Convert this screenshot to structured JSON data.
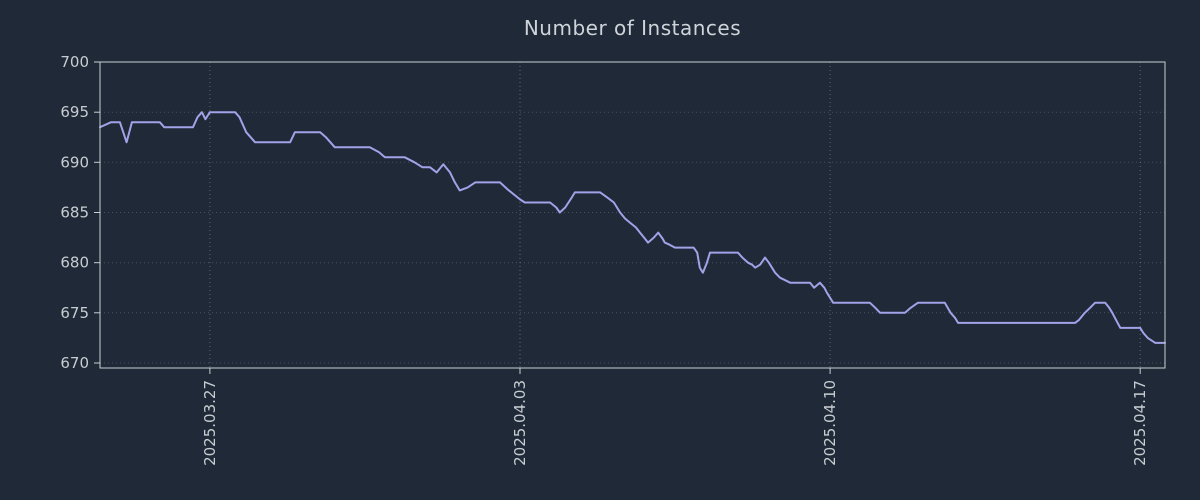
{
  "chart_data": {
    "type": "line",
    "title": "Number of Instances",
    "xlabel": "",
    "ylabel": "",
    "legend": "none",
    "grid": "dotted",
    "x_axis_note": "x values are days from the left edge of the plot (left edge is ~2.5 days before 2025.03.27)",
    "xlim": [
      0,
      24.04
    ],
    "ylim": [
      669.5,
      700
    ],
    "yticks": [
      670,
      675,
      680,
      685,
      690,
      695,
      700
    ],
    "xticks": [
      {
        "pos": 2.48,
        "label": "2025.03.27"
      },
      {
        "pos": 9.48,
        "label": "2025.04.03"
      },
      {
        "pos": 16.48,
        "label": "2025.04.10"
      },
      {
        "pos": 23.48,
        "label": "2025.04.17"
      }
    ],
    "colors": {
      "background": "#1f2937",
      "line": "#a2a2e8",
      "grid": "#7b828c",
      "spine": "#c9ced4",
      "text": "#c8cdd2",
      "title": "#cfd4da"
    },
    "series": [
      {
        "name": "Number of Instances",
        "points": [
          [
            0.0,
            693.5
          ],
          [
            0.25,
            694
          ],
          [
            0.45,
            694
          ],
          [
            0.6,
            692
          ],
          [
            0.72,
            694
          ],
          [
            1.35,
            694
          ],
          [
            1.45,
            693.5
          ],
          [
            2.1,
            693.5
          ],
          [
            2.2,
            694.5
          ],
          [
            2.3,
            695
          ],
          [
            2.38,
            694.3
          ],
          [
            2.48,
            695
          ],
          [
            3.05,
            695
          ],
          [
            3.15,
            694.5
          ],
          [
            3.3,
            693
          ],
          [
            3.5,
            692
          ],
          [
            4.29,
            692
          ],
          [
            4.4,
            693
          ],
          [
            4.97,
            693
          ],
          [
            5.1,
            692.5
          ],
          [
            5.3,
            691.5
          ],
          [
            6.09,
            691.5
          ],
          [
            6.3,
            691
          ],
          [
            6.43,
            690.5
          ],
          [
            6.88,
            690.5
          ],
          [
            7.1,
            690
          ],
          [
            7.28,
            689.5
          ],
          [
            7.45,
            689.5
          ],
          [
            7.6,
            689
          ],
          [
            7.75,
            689.8
          ],
          [
            7.9,
            689
          ],
          [
            8.01,
            688
          ],
          [
            8.12,
            687.2
          ],
          [
            8.3,
            687.5
          ],
          [
            8.47,
            688
          ],
          [
            9.03,
            688
          ],
          [
            9.2,
            687.3
          ],
          [
            9.48,
            686.3
          ],
          [
            9.59,
            686
          ],
          [
            10.16,
            686
          ],
          [
            10.3,
            685.5
          ],
          [
            10.38,
            685
          ],
          [
            10.5,
            685.5
          ],
          [
            10.65,
            686.5
          ],
          [
            10.72,
            687
          ],
          [
            11.29,
            687
          ],
          [
            11.45,
            686.5
          ],
          [
            11.6,
            686
          ],
          [
            11.74,
            685
          ],
          [
            11.85,
            684.4
          ],
          [
            11.96,
            684
          ],
          [
            12.1,
            683.5
          ],
          [
            12.19,
            683
          ],
          [
            12.3,
            682.4
          ],
          [
            12.37,
            682
          ],
          [
            12.5,
            682.5
          ],
          [
            12.6,
            683
          ],
          [
            12.7,
            682.4
          ],
          [
            12.75,
            682
          ],
          [
            12.85,
            681.8
          ],
          [
            12.98,
            681.5
          ],
          [
            13.4,
            681.5
          ],
          [
            13.48,
            681
          ],
          [
            13.54,
            679.5
          ],
          [
            13.61,
            679
          ],
          [
            13.7,
            680
          ],
          [
            13.77,
            681
          ],
          [
            14.4,
            681
          ],
          [
            14.5,
            680.5
          ],
          [
            14.63,
            680
          ],
          [
            14.72,
            679.8
          ],
          [
            14.79,
            679.5
          ],
          [
            14.9,
            679.8
          ],
          [
            15.01,
            680.5
          ],
          [
            15.1,
            680
          ],
          [
            15.17,
            679.5
          ],
          [
            15.24,
            679
          ],
          [
            15.35,
            678.5
          ],
          [
            15.58,
            678
          ],
          [
            16.03,
            678
          ],
          [
            16.12,
            677.5
          ],
          [
            16.25,
            678
          ],
          [
            16.35,
            677.5
          ],
          [
            16.41,
            677
          ],
          [
            16.48,
            676.5
          ],
          [
            16.55,
            676
          ],
          [
            17.38,
            676
          ],
          [
            17.5,
            675.5
          ],
          [
            17.61,
            675
          ],
          [
            18.17,
            675
          ],
          [
            18.3,
            675.5
          ],
          [
            18.46,
            676
          ],
          [
            19.07,
            676
          ],
          [
            19.2,
            675
          ],
          [
            19.3,
            674.5
          ],
          [
            19.37,
            674
          ],
          [
            22.01,
            674
          ],
          [
            22.1,
            674.3
          ],
          [
            22.23,
            675
          ],
          [
            22.35,
            675.5
          ],
          [
            22.46,
            676
          ],
          [
            22.69,
            676
          ],
          [
            22.78,
            675.5
          ],
          [
            22.85,
            675
          ],
          [
            22.91,
            674.5
          ],
          [
            23.03,
            673.5
          ],
          [
            23.48,
            673.5
          ],
          [
            23.55,
            673
          ],
          [
            23.65,
            672.5
          ],
          [
            23.82,
            672
          ],
          [
            24.04,
            672
          ]
        ]
      }
    ]
  }
}
